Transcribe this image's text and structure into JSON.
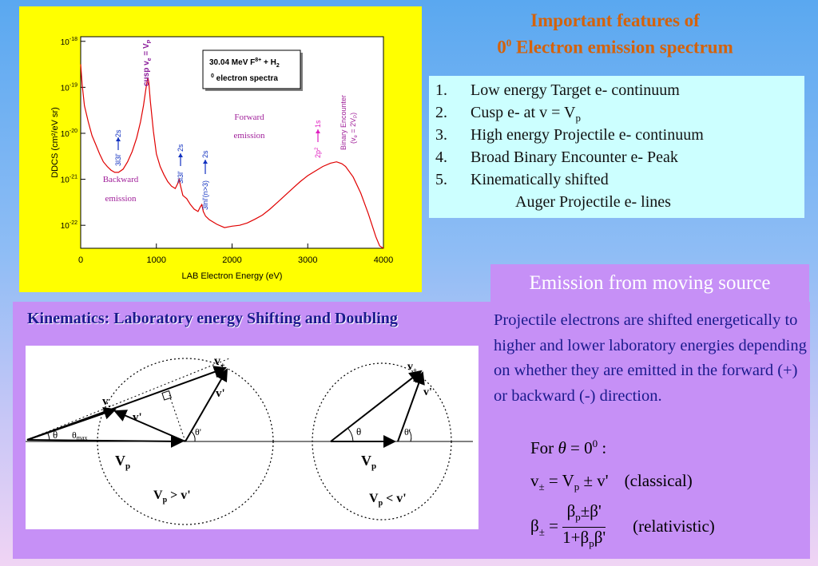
{
  "chart_data": {
    "type": "line",
    "xlabel": "LAB Electron Energy (eV)",
    "ylabel": "DDCS (cm²/eV sr)",
    "xlim": [
      0,
      4000
    ],
    "ylim_log10": [
      -22.5,
      -17.9
    ],
    "log_y": true,
    "x_ticks": [
      "0",
      "1000",
      "2000",
      "3000",
      "4000"
    ],
    "y_ticks": [
      "10",
      "10",
      "10",
      "10",
      "10"
    ],
    "y_tick_exponents": [
      "-18",
      "-19",
      "-20",
      "-21",
      "-22"
    ],
    "legend_box": {
      "line1": "30.04 MeV F",
      "line1_sup": "8+",
      "line1_tail": " + H",
      "line1_sub": "2",
      "line2_sup": "0",
      "line2": " electron spectra"
    },
    "annotations": {
      "cusp": "cusp v",
      "cusp_sub1": "e",
      "cusp_eq": " = V",
      "cusp_sub2": "P",
      "backward_1": "Backward",
      "backward_2": "emission",
      "forward_1": "Forward",
      "forward_2": "emission",
      "binary_1": "Binary Encounter",
      "binary_2": "(v",
      "binary_2_sub": "e",
      "binary_2_tail": " = 2V",
      "binary_2_sub2": "P",
      "binary_2_end": ")",
      "line_3l3l_2s_a": "3l3l'",
      "line_2s_a": "2s",
      "line_3l3l_2s_b": "3l3l'",
      "line_2s_b": "2s",
      "line_3lnl": "3lnl'(n>3)",
      "line_2s_c": "2s",
      "line_2p2": "2p",
      "line_2p2_sup": "2",
      "line_1s": "1s"
    },
    "series": [
      {
        "x": [
          0,
          20,
          50,
          100,
          150,
          200,
          250,
          300,
          350,
          400,
          450,
          500,
          560,
          620,
          680,
          740,
          790,
          830,
          860,
          880,
          890,
          900,
          920,
          960,
          1000,
          1050,
          1100,
          1150,
          1200,
          1250,
          1280,
          1300,
          1320,
          1350,
          1400,
          1450,
          1500,
          1550,
          1580,
          1600,
          1620,
          1650,
          1700,
          1800,
          1900,
          2000,
          2100,
          2200,
          2300,
          2400,
          2500,
          2600,
          2700,
          2800,
          2900,
          3000,
          3100,
          3200,
          3300,
          3380,
          3450,
          3500,
          3600,
          3700,
          3800,
          3850,
          3900,
          3950,
          4000
        ],
        "y_log10": [
          -18.5,
          -18.95,
          -19.4,
          -19.75,
          -20.05,
          -20.25,
          -20.45,
          -20.62,
          -20.72,
          -20.8,
          -20.85,
          -20.85,
          -20.78,
          -20.62,
          -20.4,
          -20.1,
          -19.75,
          -19.4,
          -19.05,
          -18.85,
          -18.8,
          -18.9,
          -19.3,
          -19.95,
          -20.45,
          -20.72,
          -20.9,
          -21.05,
          -21.15,
          -21.2,
          -21.1,
          -21.0,
          -21.15,
          -21.35,
          -21.42,
          -21.55,
          -21.65,
          -21.7,
          -21.6,
          -21.55,
          -21.7,
          -21.8,
          -21.88,
          -21.98,
          -22.05,
          -22.02,
          -22.0,
          -21.95,
          -21.87,
          -21.78,
          -21.65,
          -21.5,
          -21.35,
          -21.2,
          -21.05,
          -20.92,
          -20.82,
          -20.72,
          -20.65,
          -20.62,
          -20.66,
          -20.72,
          -20.95,
          -21.3,
          -21.75,
          -22.0,
          -22.25,
          -22.45,
          -22.55
        ]
      }
    ]
  },
  "title": {
    "line1": "Important features of",
    "line2_pre": "0",
    "line2_sup": "0",
    "line2_post": " Electron emission spectrum"
  },
  "features": [
    {
      "num": "1.",
      "pre": "Low energy Target e- continuum",
      "sub": "",
      "post": ""
    },
    {
      "num": "2.",
      "pre": "Cusp e- at v = V",
      "sub": "p",
      "post": ""
    },
    {
      "num": "3.",
      "pre": "High energy Projectile e- continuum",
      "sub": "",
      "post": ""
    },
    {
      "num": "4.",
      "pre": "Broad Binary Encounter e- Peak",
      "sub": "",
      "post": ""
    },
    {
      "num": "5.",
      "pre": "Kinematically shifted",
      "sub": "",
      "post": ""
    }
  ],
  "features_cont": "Auger Projectile e- lines",
  "emission_title": "Emission from moving source",
  "kin_title": "Kinematics: Laboratory energy Shifting and Doubling",
  "diagram": {
    "left": {
      "v_plus": "v",
      "v_plus_sub": "+",
      "v_prime_top": "v'",
      "v_minus": "v",
      "v_minus_sub": "-",
      "v_prime_mid": "v'",
      "theta": "θ",
      "theta_max": "θ",
      "theta_max_sub": "max",
      "theta_prime": "θ'",
      "Vp": "V",
      "Vp_sub": "p",
      "cond": "V",
      "cond_sub": "p",
      "cond_tail": " > v'"
    },
    "right": {
      "v_plus": "v",
      "v_plus_sub": "+",
      "v_prime": "v'",
      "theta": "θ",
      "theta_prime": "θ'",
      "Vp": "V",
      "Vp_sub": "p",
      "cond": "V",
      "cond_sub": "p",
      "cond_tail": " < v'"
    }
  },
  "description": "Projectile electrons are shifted energetically to higher and lower laboratory energies depending on whether they are emitted in the forward (+) or backward (-) direction.",
  "equations": {
    "for_pre": "For ",
    "for_theta": "θ",
    "for_mid": " = 0",
    "for_sup": "0",
    "for_post": " :",
    "classical_v": "v",
    "classical_sub": "±",
    "classical_eq": " = V",
    "classical_sub2": "p",
    "classical_tail": " ± v'",
    "classical_label": "(classical)",
    "rel_beta": "β",
    "rel_sub": "±",
    "rel_eq": " = ",
    "rel_num": "β",
    "rel_num_sub": "p",
    "rel_num_tail": "±β'",
    "rel_den": "1+β",
    "rel_den_sub": "p",
    "rel_den_tail": "β'",
    "rel_label": "(relativistic)"
  }
}
